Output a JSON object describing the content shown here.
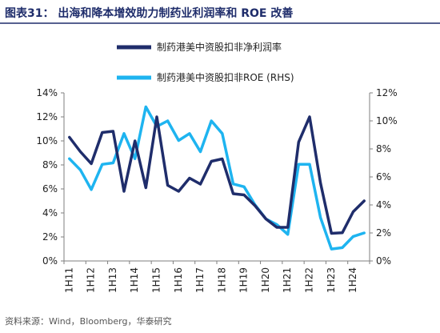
{
  "title": "图表31： 出海和降本增效助力制药业利润率和 ROE 改善",
  "source": "资料来源：Wind，Bloomberg，华泰研究",
  "colors": {
    "title": "#1f2d6b",
    "title_rule": "#1f2d6b",
    "series_margin": "#1f2d6b",
    "series_roe": "#1eb4f0",
    "axis": "#7f7f7f"
  },
  "chart_data": {
    "type": "line",
    "x_tick_labels": [
      "1H11",
      "1H12",
      "1H13",
      "1H14",
      "1H15",
      "1H16",
      "1H17",
      "1H18",
      "1H19",
      "1H20",
      "1H21",
      "1H22",
      "1H23",
      "1H24"
    ],
    "y_left": {
      "ticks": [
        "0%",
        "2%",
        "4%",
        "6%",
        "8%",
        "10%",
        "12%",
        "14%"
      ],
      "ylim": [
        0,
        14
      ]
    },
    "y_right": {
      "ticks": [
        "0%",
        "2%",
        "4%",
        "6%",
        "8%",
        "10%",
        "12%"
      ],
      "ylim": [
        0,
        12
      ]
    },
    "grid": false,
    "legend_placement": "top-center",
    "series": [
      {
        "name": "制药港美中资股扣非净利润率",
        "axis": "left",
        "color": "#1f2d6b",
        "values": [
          10.3,
          9.1,
          8.1,
          10.7,
          10.8,
          5.8,
          10.0,
          6.1,
          12.0,
          6.3,
          5.8,
          6.9,
          6.4,
          8.3,
          8.5,
          5.6,
          5.5,
          4.6,
          3.5,
          2.8,
          2.8,
          9.9,
          12.0,
          6.5,
          2.3,
          2.35,
          4.1,
          5.0
        ]
      },
      {
        "name": "制药港美中资股扣非ROE (RHS)",
        "axis": "right",
        "color": "#1eb4f0",
        "values": [
          7.3,
          6.5,
          5.1,
          6.9,
          7.0,
          9.1,
          7.3,
          11.0,
          9.6,
          10.0,
          8.6,
          9.1,
          7.8,
          10.0,
          9.1,
          5.5,
          5.3,
          4.0,
          3.0,
          2.6,
          1.9,
          6.9,
          6.9,
          3.1,
          0.85,
          0.95,
          1.75,
          2.0
        ]
      }
    ]
  }
}
